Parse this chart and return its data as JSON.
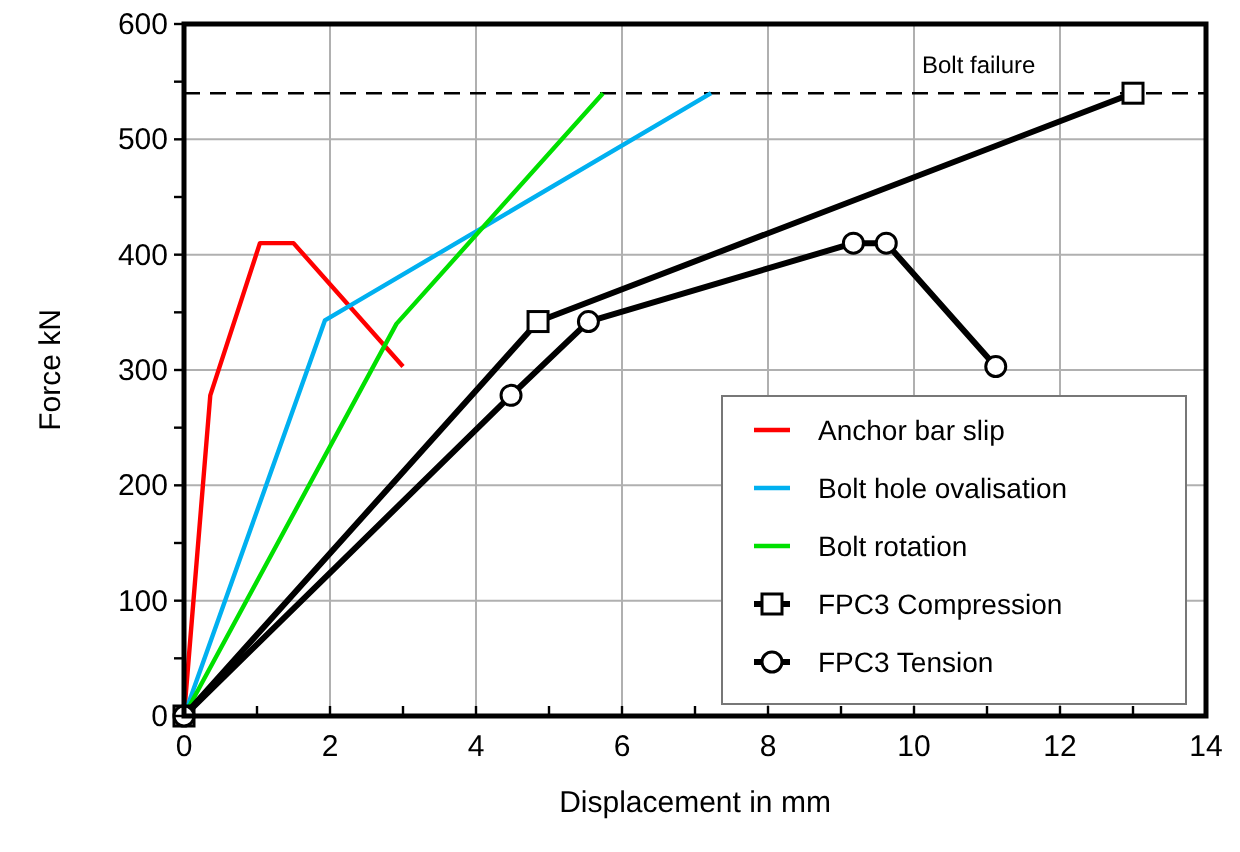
{
  "chart_data": {
    "type": "line",
    "xlabel": "Displacement in mm",
    "ylabel": "Force kN",
    "xlim": [
      0,
      14
    ],
    "ylim": [
      0,
      600
    ],
    "xticks": [
      0,
      {
        "value": 1,
        "label": null
      },
      2,
      {
        "value": 3,
        "label": null
      },
      4,
      {
        "value": 5,
        "label": null
      },
      6,
      {
        "value": 7,
        "label": null
      },
      8,
      {
        "value": 9,
        "label": null
      },
      10,
      {
        "value": 11,
        "label": null
      },
      12,
      {
        "value": 13,
        "label": null
      },
      14
    ],
    "yticks": [
      0,
      {
        "value": 50,
        "label": null
      },
      100,
      {
        "value": 150,
        "label": null
      },
      200,
      {
        "value": 250,
        "label": null
      },
      300,
      {
        "value": 350,
        "label": null
      },
      400,
      {
        "value": 450,
        "label": null
      },
      500,
      {
        "value": 550,
        "label": null
      },
      600
    ],
    "grid": true,
    "legend": "bottom right",
    "ref_lines": [
      {
        "axis": "y",
        "value": 540,
        "label": "Bolt failure",
        "color": "#000000",
        "line_style": "dashed"
      }
    ],
    "series": [
      {
        "name": "Anchor bar slip",
        "color": "#ff0000",
        "marker": "none",
        "x": [
          0,
          0.36,
          1.04,
          1.5,
          3.0
        ],
        "values": [
          0,
          278,
          410,
          410,
          303
        ]
      },
      {
        "name": "Bolt hole ovalisation",
        "color": "#00b0f0",
        "marker": "none",
        "x": [
          0,
          1.93,
          7.22
        ],
        "values": [
          0,
          343,
          540
        ]
      },
      {
        "name": "Bolt rotation",
        "color": "#00e000",
        "marker": "none",
        "x": [
          0,
          2.91,
          5.74
        ],
        "values": [
          0,
          340,
          540
        ]
      },
      {
        "name": "FPC3 Compression",
        "color": "#000000",
        "marker": "square",
        "x": [
          0,
          4.85,
          13.0
        ],
        "values": [
          0,
          342,
          540
        ]
      },
      {
        "name": "FPC3 Tension",
        "color": "#000000",
        "marker": "circle",
        "x": [
          0,
          4.48,
          5.54,
          9.17,
          9.62,
          11.12
        ],
        "values": [
          0,
          278,
          342,
          410,
          410,
          303
        ]
      }
    ]
  }
}
